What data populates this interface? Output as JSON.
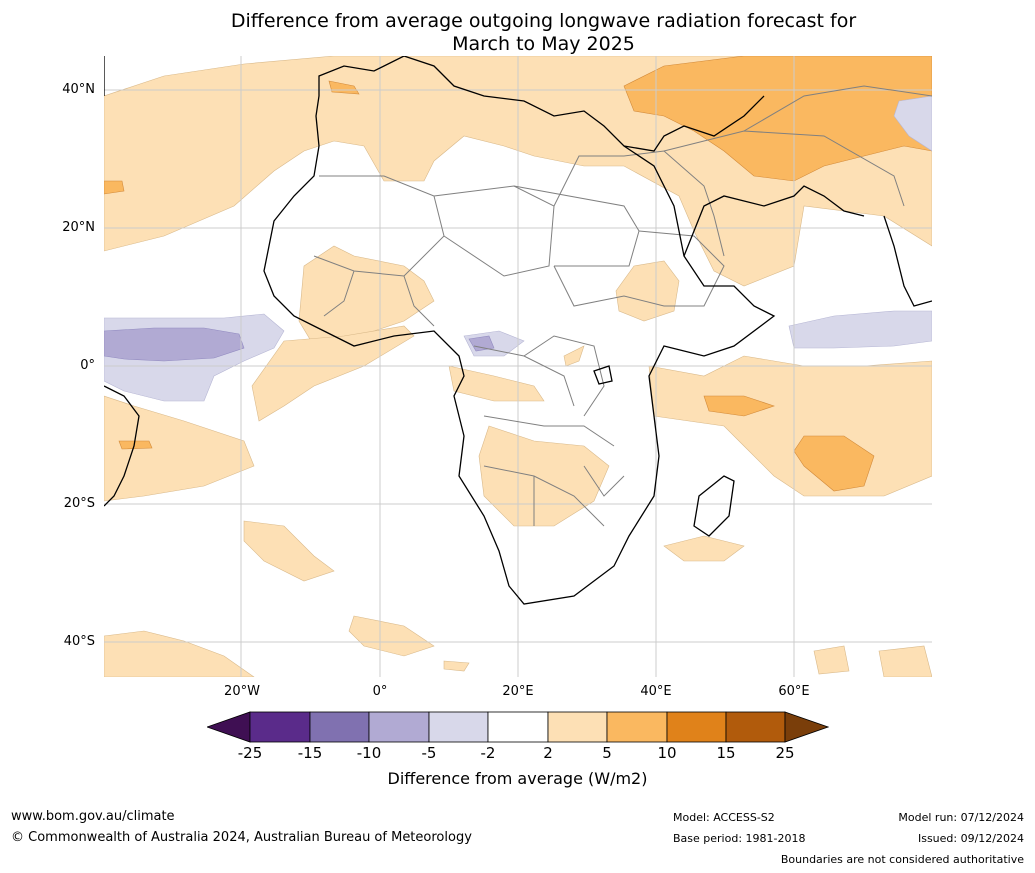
{
  "title": {
    "line1": "Difference from average outgoing longwave radiation forecast for",
    "line2": "March to May 2025"
  },
  "map": {
    "lat_labels": [
      "40°N",
      "20°N",
      "0°",
      "20°S",
      "40°S"
    ],
    "lon_labels": [
      "20°W",
      "0°",
      "20°E",
      "40°E",
      "60°E"
    ],
    "grid": true,
    "colors": {
      "ocean_land": "#ffffff",
      "coast": "#000000",
      "borders": "#808080",
      "grid": "#cccccc"
    }
  },
  "colorbar": {
    "title": "Difference from average (W/m2)",
    "ticks": [
      "-25",
      "-15",
      "-10",
      "-5",
      "-2",
      "2",
      "5",
      "10",
      "15",
      "25"
    ],
    "colors": [
      "#3f0f53",
      "#5a2b8a",
      "#8071b0",
      "#b1aad3",
      "#d8d8ea",
      "#ffffff",
      "#fde0b5",
      "#fab860",
      "#e0821a",
      "#b15b0c",
      "#7a3e0a"
    ]
  },
  "footer": {
    "url": "www.bom.gov.au/climate",
    "copyright": "© Commonwealth of Australia 2024, Australian Bureau of Meteorology",
    "model": "Model: ACCESS-S2",
    "base_period": "Base period: 1981-2018",
    "model_run": "Model run: 07/12/2024",
    "issued": "Issued: 09/12/2024",
    "disclaimer": "Boundaries are not considered authoritative"
  }
}
